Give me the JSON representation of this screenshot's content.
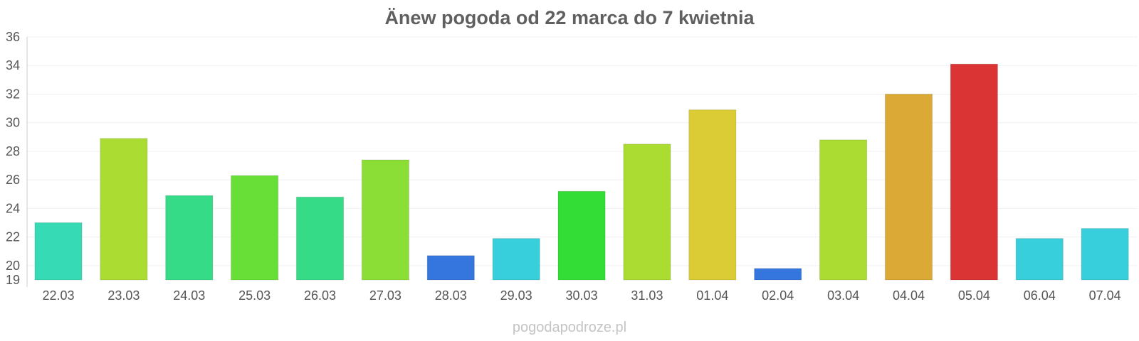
{
  "chart_data": {
    "type": "bar",
    "title": "Änew pogoda od 22 marca do 7 kwietnia",
    "xlabel": "",
    "ylabel": "",
    "categories": [
      "22.03",
      "23.03",
      "24.03",
      "25.03",
      "26.03",
      "27.03",
      "28.03",
      "29.03",
      "30.03",
      "31.03",
      "01.04",
      "02.04",
      "03.04",
      "04.04",
      "05.04",
      "06.04",
      "07.04"
    ],
    "values": [
      23.0,
      28.9,
      24.9,
      26.3,
      24.8,
      27.4,
      20.7,
      21.9,
      25.2,
      28.5,
      30.9,
      19.8,
      28.8,
      32.0,
      34.1,
      21.9,
      22.6
    ],
    "colors": [
      "#36dbb6",
      "#aadc32",
      "#35db86",
      "#68df36",
      "#35db86",
      "#8ade36",
      "#3476dd",
      "#36cfdb",
      "#33dd36",
      "#aadc32",
      "#dbcc36",
      "#3476dd",
      "#aadc32",
      "#dba935",
      "#db3434",
      "#36cfdb",
      "#36cfdb"
    ],
    "y_ticks": [
      19,
      20,
      22,
      24,
      26,
      28,
      30,
      32,
      34,
      36
    ],
    "ylim": [
      19,
      36
    ],
    "grid": true,
    "legend": "none"
  },
  "watermark": "pogodapodroze.pl"
}
